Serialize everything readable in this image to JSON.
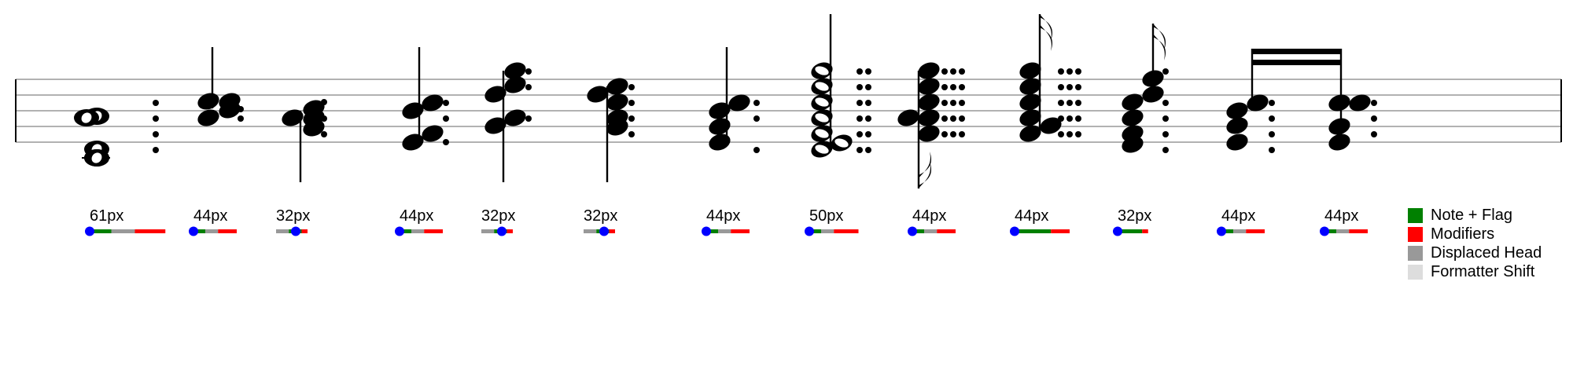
{
  "colors": {
    "note_flag": "#008000",
    "modifiers": "#ff0000",
    "displaced_head": "#999999",
    "formatter_shift": "#dddddd",
    "anchor": "#0000ff",
    "ink": "#000000",
    "staff_line": "#999999"
  },
  "legend": [
    {
      "key": "note_flag",
      "label": "Note + Flag"
    },
    {
      "key": "modifiers",
      "label": "Modifiers"
    },
    {
      "key": "displaced_head",
      "label": "Displaced Head"
    },
    {
      "key": "formatter_shift",
      "label": "Formatter Shift"
    }
  ],
  "measurements": [
    {
      "label": "61px",
      "note_flag": 22,
      "displaced_head": 24,
      "modifiers": 31
    },
    {
      "label": "44px",
      "note_flag": 12,
      "displaced_head": 13,
      "modifiers": 19
    },
    {
      "label": "32px",
      "displaced_head": 13,
      "note_flag": 13,
      "modifiers": 6
    },
    {
      "label": "44px",
      "note_flag": 12,
      "displaced_head": 13,
      "modifiers": 19
    },
    {
      "label": "32px",
      "displaced_head": 13,
      "note_flag": 13,
      "modifiers": 6
    },
    {
      "label": "32px",
      "displaced_head": 13,
      "note_flag": 13,
      "modifiers": 6
    },
    {
      "label": "44px",
      "note_flag": 12,
      "displaced_head": 13,
      "modifiers": 19
    },
    {
      "label": "50px",
      "note_flag": 12,
      "displaced_head": 13,
      "modifiers": 25
    },
    {
      "label": "44px",
      "note_flag": 12,
      "displaced_head": 13,
      "modifiers": 19
    },
    {
      "label": "44px",
      "note_flag": 37,
      "modifiers": 19
    },
    {
      "label": "32px",
      "note_flag": 25,
      "modifiers": 6
    },
    {
      "label": "44px",
      "note_flag": 12,
      "displaced_head": 13,
      "modifiers": 19
    },
    {
      "label": "44px",
      "note_flag": 12,
      "displaced_head": 13,
      "modifiers": 19
    }
  ],
  "chords": [
    {
      "duration": "whole",
      "dots": 1,
      "stem": "none",
      "flag": "none"
    },
    {
      "duration": "quarter",
      "dots": 1,
      "stem": "up",
      "flag": "none"
    },
    {
      "duration": "quarter",
      "dots": 1,
      "stem": "down",
      "flag": "none"
    },
    {
      "duration": "quarter",
      "dots": 1,
      "stem": "up",
      "flag": "none"
    },
    {
      "duration": "quarter",
      "dots": 1,
      "stem": "down",
      "flag": "none"
    },
    {
      "duration": "quarter",
      "dots": 1,
      "stem": "down",
      "flag": "none"
    },
    {
      "duration": "quarter",
      "dots": 1,
      "stem": "up",
      "flag": "none"
    },
    {
      "duration": "half",
      "dots": 2,
      "stem": "up",
      "flag": "none"
    },
    {
      "duration": "16th",
      "dots": 3,
      "stem": "down",
      "flag": "16th"
    },
    {
      "duration": "16th",
      "dots": 3,
      "stem": "up",
      "flag": "16th"
    },
    {
      "duration": "16th",
      "dots": 1,
      "stem": "up",
      "flag": "16th"
    },
    {
      "duration": "16th",
      "dots": 1,
      "stem": "down",
      "flag": "beamed"
    },
    {
      "duration": "16th",
      "dots": 1,
      "stem": "down",
      "flag": "beamed"
    }
  ]
}
